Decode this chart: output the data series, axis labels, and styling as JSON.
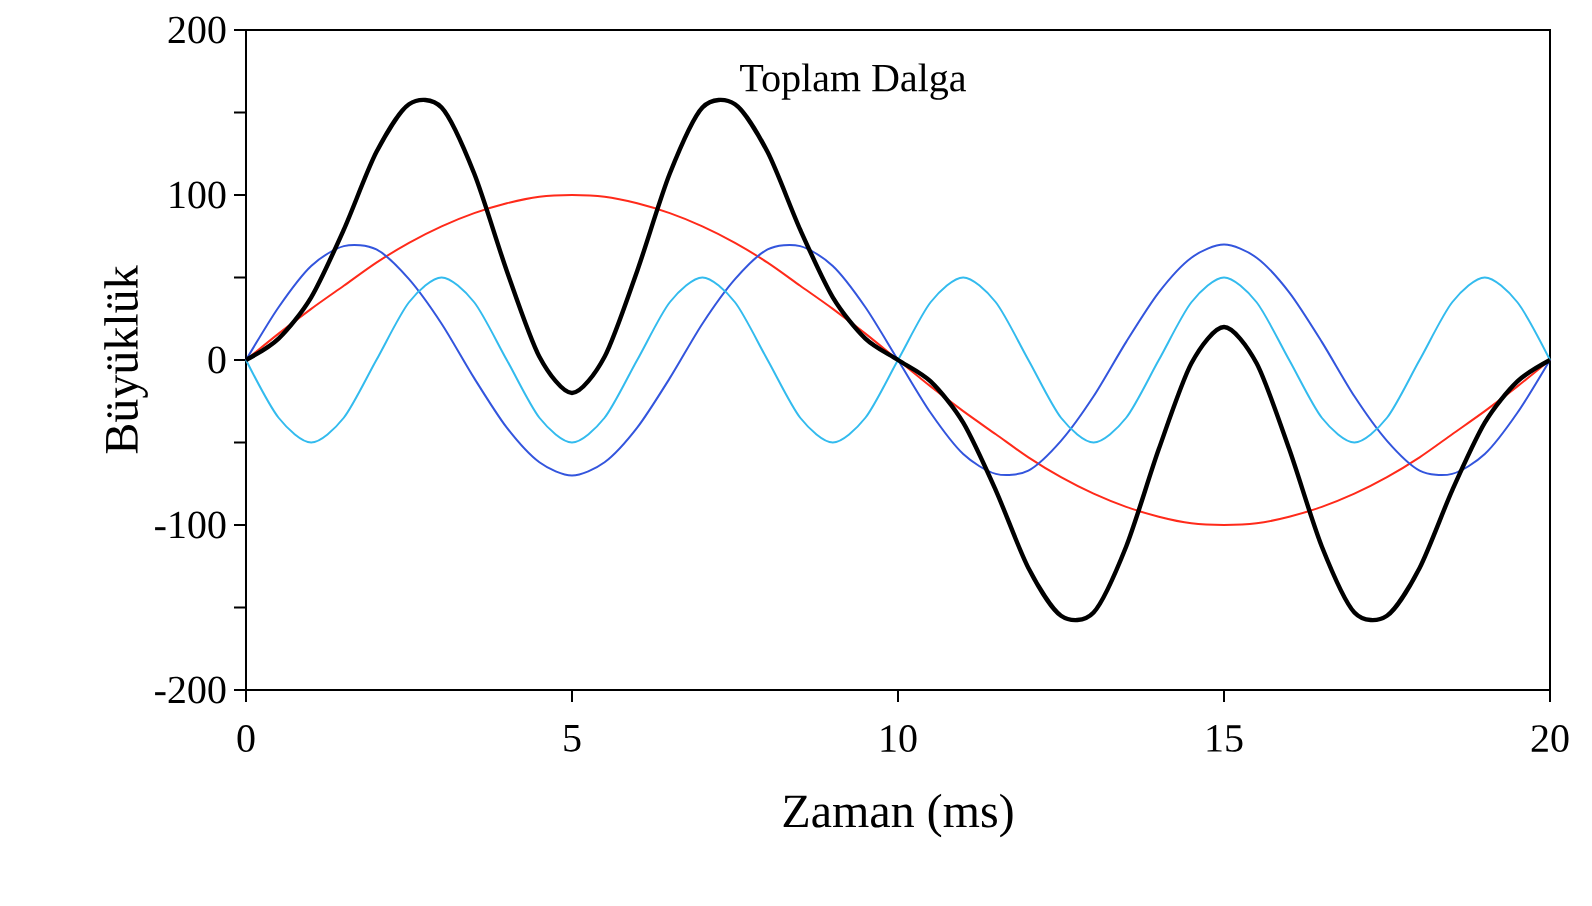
{
  "chart_data": {
    "type": "line",
    "xlabel": "Zaman (ms)",
    "ylabel": "Büyüklük",
    "x": [
      0,
      0.5,
      1,
      1.5,
      2,
      2.5,
      3,
      3.5,
      4,
      4.5,
      5,
      5.5,
      6,
      6.5,
      7,
      7.5,
      8,
      8.5,
      9,
      9.5,
      10,
      10.5,
      11,
      11.5,
      12,
      12.5,
      13,
      13.5,
      14,
      14.5,
      15,
      15.5,
      16,
      16.5,
      17,
      17.5,
      18,
      18.5,
      19,
      19.5,
      20
    ],
    "series": [
      {
        "color": "#ff2a1a",
        "values": [
          0,
          16,
          31,
          45,
          59,
          71,
          81,
          89,
          95,
          99,
          100,
          99,
          95,
          89,
          81,
          71,
          59,
          45,
          31,
          16,
          0,
          -16,
          -31,
          -45,
          -59,
          -71,
          -81,
          -89,
          -95,
          -99,
          -100,
          -99,
          -95,
          -89,
          -81,
          -71,
          -59,
          -45,
          -31,
          -16,
          0
        ]
      },
      {
        "color": "#3355dd",
        "values": [
          0,
          32,
          57,
          69,
          67,
          49,
          22,
          -11,
          -41,
          -62,
          -70,
          -62,
          -41,
          -11,
          22,
          49,
          67,
          69,
          57,
          32,
          0,
          -32,
          -57,
          -69,
          -67,
          -49,
          -22,
          11,
          41,
          62,
          70,
          62,
          41,
          11,
          -22,
          -49,
          -67,
          -69,
          -57,
          -32,
          0
        ]
      },
      {
        "color": "#33bbee",
        "values": [
          0,
          -35,
          -50,
          -35,
          0,
          35,
          50,
          35,
          0,
          -35,
          -50,
          -35,
          0,
          35,
          50,
          35,
          0,
          -35,
          -50,
          -35,
          0,
          35,
          50,
          35,
          0,
          -35,
          -50,
          -35,
          0,
          35,
          50,
          35,
          0,
          -35,
          -50,
          -35,
          0,
          35,
          50,
          35,
          0
        ]
      },
      {
        "name": "Toplam Dalga",
        "color": "#000000",
        "values": [
          0,
          13,
          38,
          79,
          126,
          155,
          153,
          113,
          54,
          2,
          -20,
          2,
          54,
          113,
          153,
          155,
          126,
          79,
          38,
          13,
          0,
          -13,
          -38,
          -79,
          -126,
          -155,
          -153,
          -113,
          -54,
          -2,
          20,
          -2,
          -54,
          -113,
          -153,
          -155,
          -126,
          -79,
          -38,
          -13,
          0
        ]
      }
    ],
    "xlim": [
      0,
      20
    ],
    "xticks": [
      0,
      5,
      10,
      15,
      20
    ],
    "ylim": [
      -200,
      200
    ],
    "yticks": [
      -200,
      -100,
      0,
      100,
      200
    ],
    "grid": false,
    "marker": "none",
    "line_style": "solid"
  }
}
